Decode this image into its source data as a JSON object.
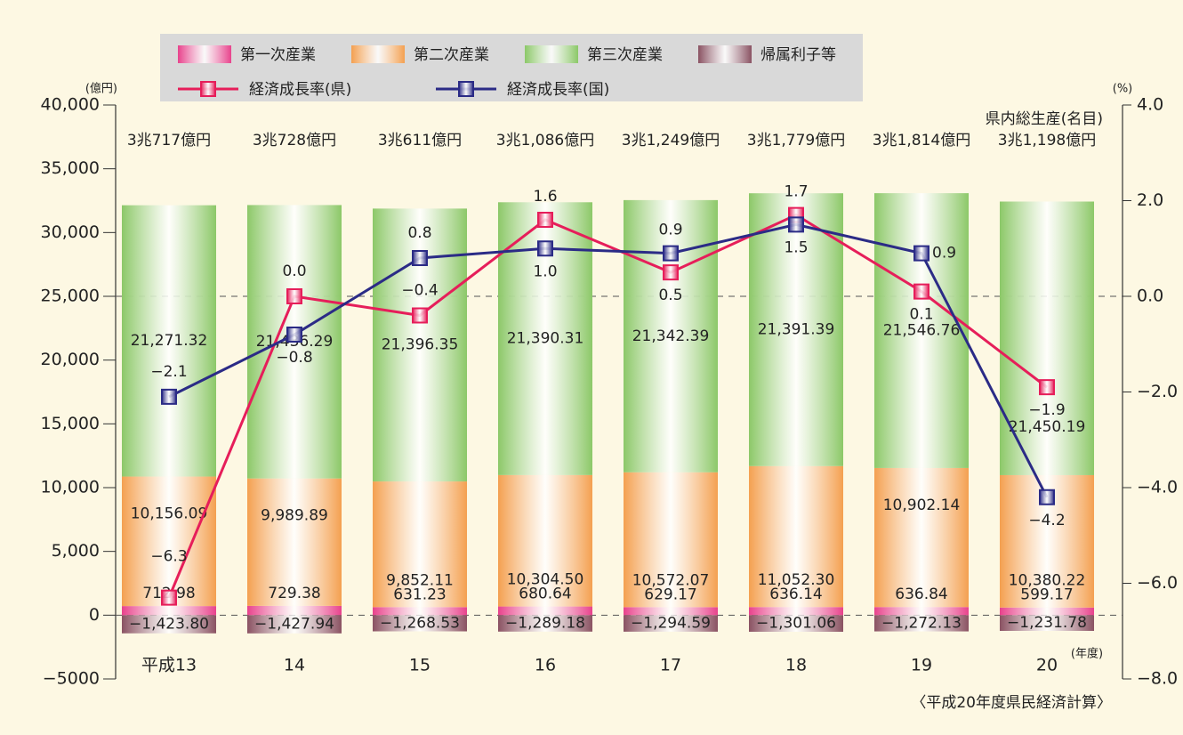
{
  "chart_data": {
    "type": "bar",
    "stacked": true,
    "categories": [
      "平成13",
      "14",
      "15",
      "16",
      "17",
      "18",
      "19",
      "20"
    ],
    "series": [
      {
        "name": "第一次産業",
        "type": "bar",
        "color": "#e8428c",
        "values": [
          712.98,
          729.38,
          631.23,
          680.64,
          629.17,
          636.14,
          636.84,
          599.17
        ],
        "value_labels": [
          "712.98",
          "729.38",
          "631.23",
          "680.64",
          "629.17",
          "636.14",
          "636.84",
          "599.17"
        ]
      },
      {
        "name": "第二次産業",
        "type": "bar",
        "color": "#f4a050",
        "values": [
          10156.09,
          9989.89,
          9852.11,
          10304.5,
          10572.07,
          11052.3,
          10902.14,
          10380.22
        ],
        "value_labels": [
          "10,156.09",
          "9,989.89",
          "9,852.11",
          "10,304.50",
          "10,572.07",
          "11,052.30",
          "10,902.14",
          "10,380.22"
        ]
      },
      {
        "name": "第三次産業",
        "type": "bar",
        "color": "#8cc868",
        "values": [
          21271.32,
          21436.29,
          21396.35,
          21390.31,
          21342.39,
          21391.39,
          21546.76,
          21450.19
        ],
        "value_labels": [
          "21,271.32",
          "21,436.29",
          "21,396.35",
          "21,390.31",
          "21,342.39",
          "21,391.39",
          "21,546.76",
          "21,450.19"
        ]
      },
      {
        "name": "帰属利子等",
        "type": "bar",
        "color": "#8a5262",
        "values": [
          -1423.8,
          -1427.94,
          -1268.53,
          -1289.18,
          -1294.59,
          -1301.06,
          -1272.13,
          -1231.78
        ],
        "value_labels": [
          "−1,423.80",
          "−1,427.94",
          "−1,268.53",
          "−1,289.18",
          "−1,294.59",
          "−1,301.06",
          "−1,272.13",
          "−1,231.78"
        ]
      },
      {
        "name": "経済成長率(県)",
        "type": "line",
        "axis": "y2",
        "color": "#e61e5a",
        "values": [
          -6.3,
          0.0,
          -0.4,
          1.6,
          0.5,
          1.7,
          0.1,
          -1.9
        ],
        "value_labels": [
          "−6.3",
          "0.0",
          "−0.4",
          "1.6",
          "0.5",
          "1.7",
          "0.1",
          "−1.9"
        ]
      },
      {
        "name": "経済成長率(国)",
        "type": "line",
        "axis": "y2",
        "color": "#2b2b86",
        "values": [
          -2.1,
          -0.8,
          0.8,
          1.0,
          0.9,
          1.5,
          0.9,
          -4.2
        ],
        "value_labels": [
          "−2.1",
          "−0.8",
          "0.8",
          "1.0",
          "0.9",
          "1.5",
          "0.9",
          "−4.2"
        ]
      }
    ],
    "total_labels": [
      "3兆717億円",
      "3兆728億円",
      "3兆611億円",
      "3兆1,086億円",
      "3兆1,249億円",
      "3兆1,779億円",
      "3兆1,814億円",
      "3兆1,198億円"
    ],
    "total_annotation": "県内総生産(名目)",
    "ylabel": "(億円)",
    "y2label": "(%)",
    "xlabel": "(年度)",
    "source": "〈平成20年度県民経済計算〉",
    "ylim": [
      -5000,
      40000
    ],
    "yticks": [
      {
        "value": 40000,
        "label": "40,000"
      },
      {
        "value": 35000,
        "label": "35,000"
      },
      {
        "value": 30000,
        "label": "30,000"
      },
      {
        "value": 25000,
        "label": "25,000"
      },
      {
        "value": 20000,
        "label": "20,000"
      },
      {
        "value": 15000,
        "label": "15,000"
      },
      {
        "value": 10000,
        "label": "10,000"
      },
      {
        "value": 5000,
        "label": "5,000"
      },
      0,
      {
        "value": -5000,
        "label": "−5000"
      }
    ],
    "y2lim": [
      -8,
      4
    ],
    "y2ticks": [
      {
        "value": 4,
        "label": "4.0"
      },
      {
        "value": 2,
        "label": "2.0"
      },
      {
        "value": 0,
        "label": "0.0"
      },
      {
        "value": -2,
        "label": "−2.0"
      },
      {
        "value": -4,
        "label": "−4.0"
      },
      {
        "value": -6,
        "label": "−6.0"
      },
      {
        "value": -8,
        "label": "−8.0"
      }
    ],
    "legend": "top-left"
  }
}
